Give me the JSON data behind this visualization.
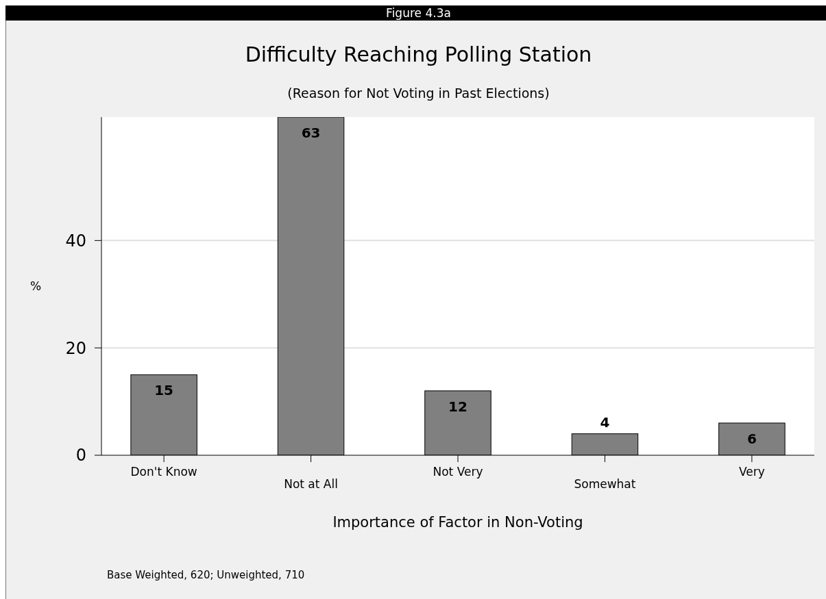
{
  "chart_data": {
    "type": "bar",
    "title": "Difficulty Reaching Polling Station",
    "subtitle": "(Reason for Not Voting in Past Elections)",
    "xlabel": "Importance of Factor in Non-Voting",
    "ylabel": "%",
    "annotations": [
      "Figure 4.3a",
      "Base Weighted, 620; Unweighted, 710"
    ],
    "categories": [
      "Don't Know",
      "Not at All",
      "Not Very",
      "Somewhat",
      "Very"
    ],
    "values": [
      15,
      63,
      12,
      4,
      6
    ],
    "color": "#808080",
    "ylim": [
      0,
      63
    ],
    "yticks": [
      0,
      20,
      40
    ],
    "grid": "y",
    "data_labels": true
  }
}
